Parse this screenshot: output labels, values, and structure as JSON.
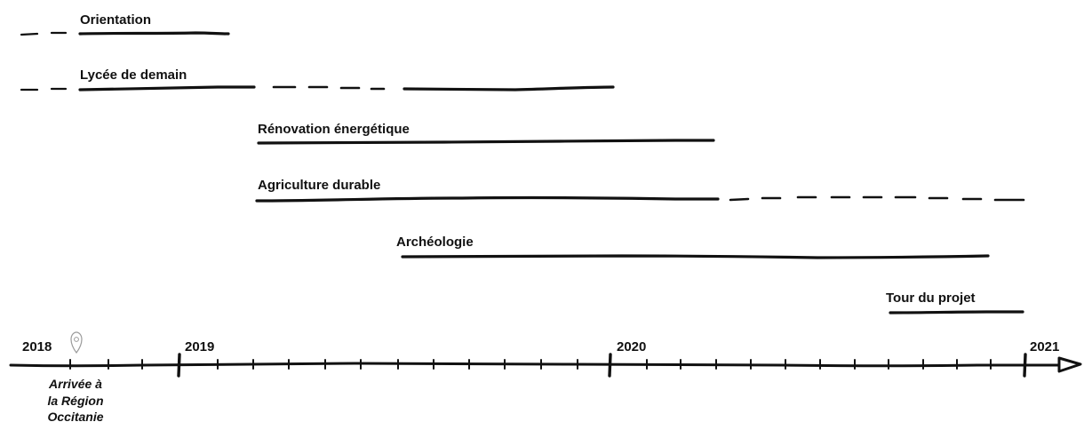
{
  "colors": {
    "ink": "#111111",
    "pin": "#9a9a9a",
    "background": "#ffffff"
  },
  "timeline": {
    "years": [
      "2018",
      "2019",
      "2020",
      "2021"
    ],
    "milestone": {
      "icon": "location-pin-icon",
      "lines": [
        "Arrivée à",
        "la Région",
        "Occitanie"
      ]
    }
  },
  "projects": [
    {
      "label": "Orientation"
    },
    {
      "label": "Lycée de demain"
    },
    {
      "label": "Rénovation énergétique"
    },
    {
      "label": "Agriculture durable"
    },
    {
      "label": "Archéologie"
    },
    {
      "label": "Tour du projet"
    }
  ]
}
